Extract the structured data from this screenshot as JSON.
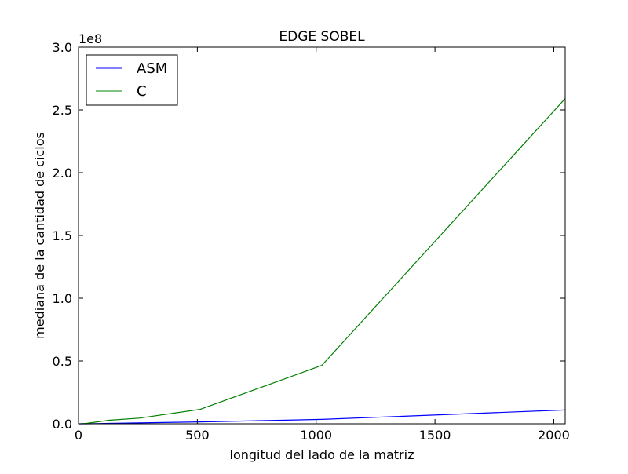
{
  "chart_data": {
    "type": "line",
    "title": "EDGE SOBEL",
    "xlabel": "longitud del lado de la matriz",
    "ylabel": "mediana de la cantidad de ciclos",
    "y_offset_label": "1e8",
    "xlim": [
      0,
      2048
    ],
    "ylim": [
      0,
      3.0
    ],
    "xticks": [
      0,
      500,
      1000,
      1500,
      2000
    ],
    "xtick_labels": [
      "0",
      "500",
      "1000",
      "1500",
      "2000"
    ],
    "yticks": [
      0,
      0.5,
      1.0,
      1.5,
      2.0,
      2.5,
      3.0
    ],
    "ytick_labels": [
      "0.0",
      "0.5",
      "1.0",
      "1.5",
      "2.0",
      "2.5",
      "3.0"
    ],
    "grid": false,
    "legend_position": "top-left",
    "series": [
      {
        "name": "ASM",
        "color": "#0000ff",
        "x": [
          4,
          8,
          16,
          32,
          64,
          128,
          256,
          512,
          1024,
          2048
        ],
        "y": [
          1e-05,
          2e-05,
          5e-05,
          0.0002,
          0.0008,
          0.003,
          0.007,
          0.015,
          0.035,
          0.11
        ]
      },
      {
        "name": "C",
        "color": "#008000",
        "x": [
          4,
          8,
          16,
          32,
          64,
          128,
          256,
          512,
          1024,
          2048
        ],
        "y": [
          5e-05,
          0.0002,
          0.0007,
          0.0028,
          0.011,
          0.028,
          0.045,
          0.115,
          0.465,
          2.59
        ]
      }
    ]
  }
}
